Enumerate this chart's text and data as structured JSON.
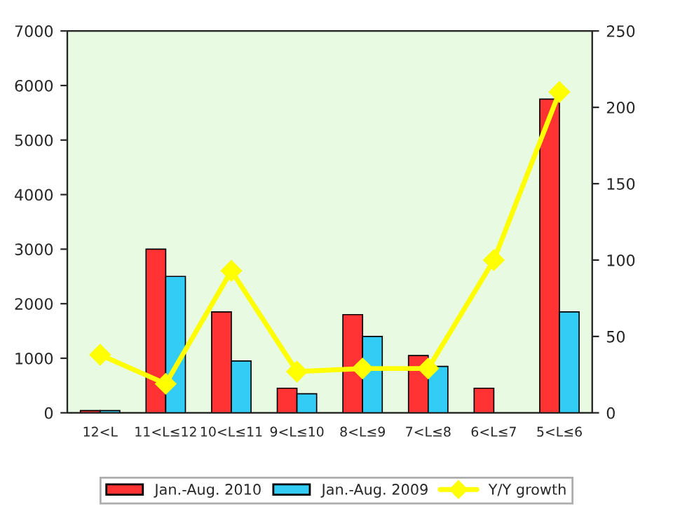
{
  "chart_data": {
    "type": "bar",
    "categories": [
      "12<L",
      "11<L≤12",
      "10<L≤11",
      "9<L≤10",
      "8<L≤9",
      "7<L≤8",
      "6<L≤7",
      "5<L≤6"
    ],
    "series": [
      {
        "name": "Jan.-Aug. 2010",
        "color": "#ff3333",
        "values": [
          40,
          3000,
          1850,
          450,
          1800,
          1050,
          450,
          5750
        ]
      },
      {
        "name": "Jan.-Aug. 2009",
        "color": "#33ccf5",
        "values": [
          40,
          2500,
          950,
          350,
          1400,
          850,
          null,
          1850
        ]
      },
      {
        "name": "Y/Y growth",
        "type": "line",
        "axis": "y2",
        "color": "#ffff00",
        "values": [
          38,
          19,
          93,
          27,
          29,
          29,
          100,
          210
        ]
      }
    ],
    "ylim": [
      0,
      7000
    ],
    "yticks": [
      0,
      1000,
      2000,
      3000,
      4000,
      5000,
      6000,
      7000
    ],
    "y2lim": [
      0,
      250
    ],
    "y2ticks": [
      0,
      50,
      100,
      150,
      200,
      250
    ],
    "grid": false,
    "legend": "bottom",
    "marker": "diamond",
    "line_style": "solid"
  }
}
